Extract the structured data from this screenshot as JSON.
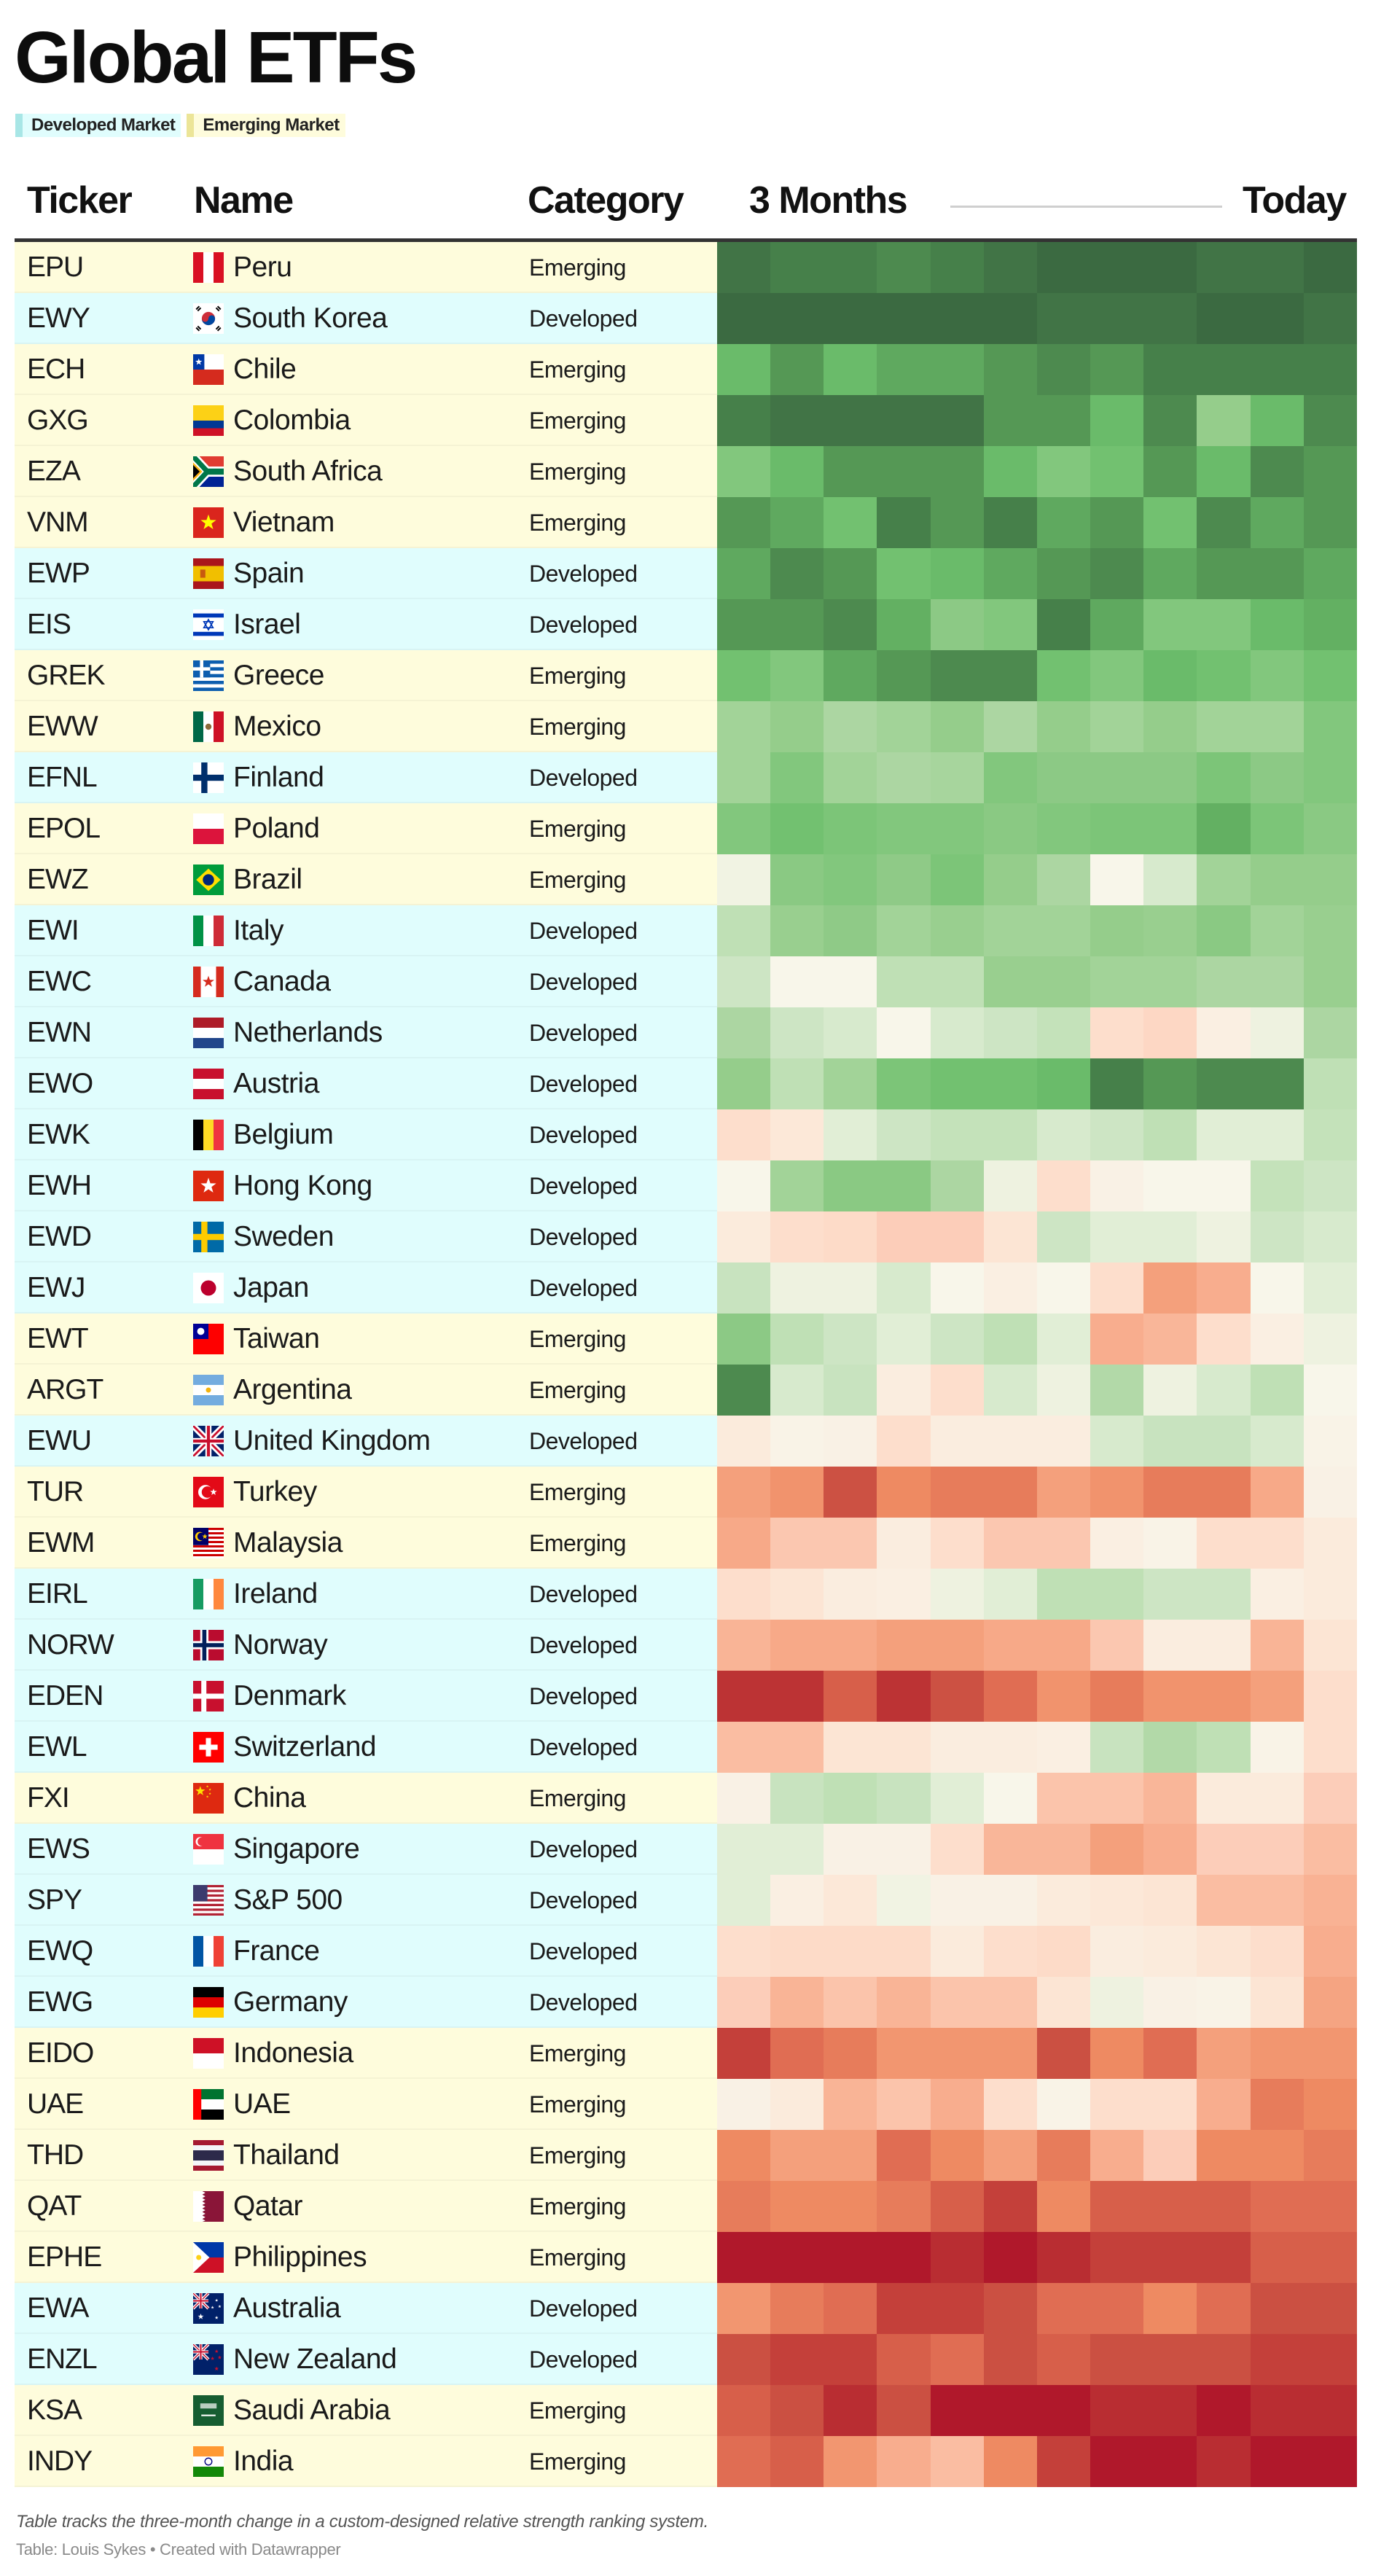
{
  "title": "Global ETFs",
  "legend": [
    {
      "label": "Developed Market",
      "color": "#a8e6e6"
    },
    {
      "label": "Emerging Market",
      "color": "#ece598"
    }
  ],
  "header": {
    "ticker": "Ticker",
    "name": "Name",
    "category": "Category",
    "start": "3 Months",
    "end": "Today"
  },
  "table": {
    "rows": [
      {
        "ticker": "EPU",
        "name": "Peru",
        "category": "Emerging",
        "flag": "peru-flag-icon"
      },
      {
        "ticker": "EWY",
        "name": "South Korea",
        "category": "Developed",
        "flag": "south-korea-flag-icon"
      },
      {
        "ticker": "ECH",
        "name": "Chile",
        "category": "Emerging",
        "flag": "chile-flag-icon"
      },
      {
        "ticker": "GXG",
        "name": "Colombia",
        "category": "Emerging",
        "flag": "colombia-flag-icon"
      },
      {
        "ticker": "EZA",
        "name": "South Africa",
        "category": "Emerging",
        "flag": "south-africa-flag-icon"
      },
      {
        "ticker": "VNM",
        "name": "Vietnam",
        "category": "Emerging",
        "flag": "vietnam-flag-icon"
      },
      {
        "ticker": "EWP",
        "name": "Spain",
        "category": "Developed",
        "flag": "spain-flag-icon"
      },
      {
        "ticker": "EIS",
        "name": "Israel",
        "category": "Developed",
        "flag": "israel-flag-icon"
      },
      {
        "ticker": "GREK",
        "name": "Greece",
        "category": "Emerging",
        "flag": "greece-flag-icon"
      },
      {
        "ticker": "EWW",
        "name": "Mexico",
        "category": "Emerging",
        "flag": "mexico-flag-icon"
      },
      {
        "ticker": "EFNL",
        "name": "Finland",
        "category": "Developed",
        "flag": "finland-flag-icon"
      },
      {
        "ticker": "EPOL",
        "name": "Poland",
        "category": "Emerging",
        "flag": "poland-flag-icon"
      },
      {
        "ticker": "EWZ",
        "name": "Brazil",
        "category": "Emerging",
        "flag": "brazil-flag-icon"
      },
      {
        "ticker": "EWI",
        "name": "Italy",
        "category": "Developed",
        "flag": "italy-flag-icon"
      },
      {
        "ticker": "EWC",
        "name": "Canada",
        "category": "Developed",
        "flag": "canada-flag-icon"
      },
      {
        "ticker": "EWN",
        "name": "Netherlands",
        "category": "Developed",
        "flag": "netherlands-flag-icon"
      },
      {
        "ticker": "EWO",
        "name": "Austria",
        "category": "Developed",
        "flag": "austria-flag-icon"
      },
      {
        "ticker": "EWK",
        "name": "Belgium",
        "category": "Developed",
        "flag": "belgium-flag-icon"
      },
      {
        "ticker": "EWH",
        "name": "Hong Kong",
        "category": "Developed",
        "flag": "hong-kong-flag-icon"
      },
      {
        "ticker": "EWD",
        "name": "Sweden",
        "category": "Developed",
        "flag": "sweden-flag-icon"
      },
      {
        "ticker": "EWJ",
        "name": "Japan",
        "category": "Developed",
        "flag": "japan-flag-icon"
      },
      {
        "ticker": "EWT",
        "name": "Taiwan",
        "category": "Emerging",
        "flag": "taiwan-flag-icon"
      },
      {
        "ticker": "ARGT",
        "name": "Argentina",
        "category": "Emerging",
        "flag": "argentina-flag-icon"
      },
      {
        "ticker": "EWU",
        "name": "United Kingdom",
        "category": "Developed",
        "flag": "uk-flag-icon"
      },
      {
        "ticker": "TUR",
        "name": "Turkey",
        "category": "Emerging",
        "flag": "turkey-flag-icon"
      },
      {
        "ticker": "EWM",
        "name": "Malaysia",
        "category": "Emerging",
        "flag": "malaysia-flag-icon"
      },
      {
        "ticker": "EIRL",
        "name": "Ireland",
        "category": "Developed",
        "flag": "ireland-flag-icon"
      },
      {
        "ticker": "NORW",
        "name": "Norway",
        "category": "Developed",
        "flag": "norway-flag-icon"
      },
      {
        "ticker": "EDEN",
        "name": "Denmark",
        "category": "Developed",
        "flag": "denmark-flag-icon"
      },
      {
        "ticker": "EWL",
        "name": "Switzerland",
        "category": "Developed",
        "flag": "switzerland-flag-icon"
      },
      {
        "ticker": "FXI",
        "name": "China",
        "category": "Emerging",
        "flag": "china-flag-icon"
      },
      {
        "ticker": "EWS",
        "name": "Singapore",
        "category": "Developed",
        "flag": "singapore-flag-icon"
      },
      {
        "ticker": "SPY",
        "name": "S&P 500",
        "category": "Developed",
        "flag": "usa-flag-icon"
      },
      {
        "ticker": "EWQ",
        "name": "France",
        "category": "Developed",
        "flag": "france-flag-icon"
      },
      {
        "ticker": "EWG",
        "name": "Germany",
        "category": "Developed",
        "flag": "germany-flag-icon"
      },
      {
        "ticker": "EIDO",
        "name": "Indonesia",
        "category": "Emerging",
        "flag": "indonesia-flag-icon"
      },
      {
        "ticker": "UAE",
        "name": "UAE",
        "category": "Emerging",
        "flag": "uae-flag-icon"
      },
      {
        "ticker": "THD",
        "name": "Thailand",
        "category": "Emerging",
        "flag": "thailand-flag-icon"
      },
      {
        "ticker": "QAT",
        "name": "Qatar",
        "category": "Emerging",
        "flag": "qatar-flag-icon"
      },
      {
        "ticker": "EPHE",
        "name": "Philippines",
        "category": "Emerging",
        "flag": "philippines-flag-icon"
      },
      {
        "ticker": "EWA",
        "name": "Australia",
        "category": "Developed",
        "flag": "australia-flag-icon"
      },
      {
        "ticker": "ENZL",
        "name": "New Zealand",
        "category": "Developed",
        "flag": "new-zealand-flag-icon"
      },
      {
        "ticker": "KSA",
        "name": "Saudi Arabia",
        "category": "Emerging",
        "flag": "saudi-arabia-flag-icon"
      },
      {
        "ticker": "INDY",
        "name": "India",
        "category": "Emerging",
        "flag": "india-flag-icon"
      }
    ]
  },
  "chart_data": {
    "type": "heatmap",
    "title": "Global ETFs",
    "xlabel_start": "3 Months",
    "xlabel_end": "Today",
    "columns": 12,
    "value_scale": "relative strength level, -10 (strongest red) to +10 (darkest green), estimated from colour",
    "color_low": "#b0182b",
    "color_mid": "#f8f6ea",
    "color_high": "#3b6a41",
    "values": [
      [
        9,
        8,
        8,
        7,
        8,
        9,
        10,
        10,
        10,
        9,
        9,
        10
      ],
      [
        10,
        10,
        10,
        10,
        10,
        10,
        9,
        9,
        9,
        10,
        10,
        9
      ],
      [
        4,
        6,
        4,
        5,
        5,
        6,
        7,
        6,
        8,
        8,
        8,
        8
      ],
      [
        8,
        9,
        9,
        9,
        9,
        6,
        6,
        4,
        7,
        2.3,
        4,
        7
      ],
      [
        3,
        4,
        6,
        6,
        6,
        4,
        3,
        3.5,
        6,
        4,
        7,
        6
      ],
      [
        6,
        5,
        3.5,
        8,
        6,
        8,
        5,
        6,
        3.5,
        7,
        5,
        6
      ],
      [
        5,
        7,
        6,
        3.5,
        4,
        5,
        6,
        7,
        5,
        6,
        6,
        5
      ],
      [
        6,
        6,
        7,
        4.5,
        2.6,
        3,
        8,
        5,
        3,
        3,
        4,
        4.5
      ],
      [
        3.5,
        3,
        5,
        6,
        7,
        7,
        3.5,
        3,
        4,
        3.5,
        3,
        3.5
      ],
      [
        2,
        2.3,
        1.6,
        2,
        2.3,
        1.6,
        2.3,
        2,
        2.3,
        2,
        2,
        3
      ],
      [
        2,
        3,
        2,
        1.6,
        1.8,
        3,
        2.6,
        2.6,
        2.6,
        3.2,
        2.6,
        3
      ],
      [
        3,
        3.5,
        3.2,
        3,
        3,
        2.7,
        3,
        3.2,
        3.2,
        4.5,
        3.2,
        2.7
      ],
      [
        0.3,
        2.7,
        3,
        2.5,
        3.2,
        2.3,
        1.6,
        0,
        0.8,
        2,
        2.3,
        2.3
      ],
      [
        1.3,
        2.2,
        2.5,
        2,
        2.2,
        2,
        2,
        2.3,
        2.2,
        2.7,
        2,
        2.2
      ],
      [
        1,
        0,
        0,
        1.3,
        1.3,
        2.2,
        2.2,
        2,
        2,
        1.6,
        1.6,
        2.2
      ],
      [
        1.6,
        1,
        0.8,
        0,
        0.8,
        1,
        1.2,
        -1,
        -1.2,
        -0.4,
        0.4,
        1.6
      ],
      [
        2.3,
        1.3,
        2,
        3.2,
        3.5,
        3.5,
        4,
        8,
        6,
        7,
        7,
        1.3
      ],
      [
        -1,
        -0.7,
        0.6,
        1,
        1.2,
        1.2,
        0.8,
        1,
        1.3,
        0.6,
        0.6,
        1.2
      ],
      [
        0,
        2,
        2.7,
        2.7,
        1.6,
        0.4,
        -1,
        -0.3,
        0,
        0,
        1.2,
        1
      ],
      [
        -0.6,
        -1,
        -1.1,
        -1.5,
        -1.5,
        -0.8,
        1,
        0.6,
        0.6,
        0.4,
        1,
        0.8
      ],
      [
        1.1,
        0.4,
        0.4,
        0.8,
        0,
        -0.4,
        0,
        -1,
        -3.2,
        -2.6,
        0,
        0.6
      ],
      [
        2.6,
        1.3,
        1,
        0.6,
        1,
        1.3,
        0.6,
        -2.6,
        -2.2,
        -1,
        -0.4,
        0.4
      ],
      [
        7,
        0.8,
        1.1,
        -0.5,
        -1,
        0.8,
        0.4,
        1.5,
        0.4,
        0.8,
        1.3,
        0
      ],
      [
        -0.6,
        -0.2,
        -0.3,
        -1,
        -0.5,
        -0.5,
        -0.5,
        0.8,
        1.1,
        1.1,
        0.8,
        -0.2
      ],
      [
        -3.2,
        -3.7,
        -6.5,
        -4,
        -4.6,
        -4.6,
        -3.2,
        -3.7,
        -4.6,
        -4.6,
        -2.8,
        -0.3
      ],
      [
        -2.8,
        -1.7,
        -1.7,
        -0.5,
        -1,
        -1.7,
        -1.7,
        -0.4,
        -0.2,
        -1,
        -1,
        -0.6
      ],
      [
        -1,
        -0.8,
        -0.5,
        -0.4,
        0.4,
        0.6,
        1.3,
        1.3,
        1,
        1,
        -0.4,
        -0.6
      ],
      [
        -2.3,
        -2.8,
        -2.8,
        -3.2,
        -3.2,
        -2.8,
        -2.8,
        -1.7,
        -0.5,
        -0.5,
        -2.3,
        -0.8
      ],
      [
        -8,
        -8,
        -5.5,
        -8,
        -6.5,
        -5,
        -3.7,
        -4.6,
        -3.7,
        -3.7,
        -3.2,
        -1
      ],
      [
        -2,
        -2,
        -0.8,
        -0.8,
        -0.5,
        -0.5,
        -0.4,
        1.1,
        1.5,
        1.3,
        -0.2,
        -1
      ],
      [
        -0.3,
        1.1,
        1.3,
        1.1,
        0.6,
        0,
        -1.8,
        -1.8,
        -2.2,
        -0.6,
        -0.6,
        -1.5
      ],
      [
        0.6,
        0.6,
        -0.3,
        -0.3,
        -1,
        -2.2,
        -2.2,
        -3.2,
        -2.6,
        -1.5,
        -1.5,
        -2
      ],
      [
        0.6,
        -0.4,
        -0.7,
        0.3,
        -0.3,
        -0.3,
        -0.6,
        -0.7,
        -0.8,
        -2,
        -2,
        -2.4
      ],
      [
        -1,
        -1.1,
        -1.1,
        -1.1,
        -0.6,
        -1,
        -1.1,
        -0.5,
        -0.6,
        -0.8,
        -1,
        -2.6
      ],
      [
        -1.5,
        -2.3,
        -1.8,
        -2.3,
        -1.8,
        -1.8,
        -0.8,
        0.4,
        -0.3,
        -0.2,
        -0.8,
        -3
      ],
      [
        -7.3,
        -5,
        -4.6,
        -3.6,
        -3.6,
        -3.6,
        -6.6,
        -4,
        -5,
        -3.2,
        -3.6,
        -3.6
      ],
      [
        -0.3,
        -0.6,
        -2.3,
        -1.8,
        -2.6,
        -1,
        -0.2,
        -1,
        -1,
        -2.6,
        -4.6,
        -4
      ],
      [
        -4,
        -3.2,
        -3.2,
        -5,
        -4,
        -3.2,
        -4.6,
        -2.6,
        -1.5,
        -4,
        -4,
        -4.6
      ],
      [
        -4.6,
        -4,
        -4,
        -4.6,
        -5.5,
        -7.3,
        -4,
        -5.5,
        -5.5,
        -5.5,
        -5,
        -5
      ],
      [
        -9.5,
        -9.5,
        -9.5,
        -9.5,
        -8.3,
        -9.5,
        -8.3,
        -7.3,
        -7.3,
        -7.3,
        -5.5,
        -5.5
      ],
      [
        -3.6,
        -4.6,
        -5,
        -7.3,
        -7.3,
        -6.6,
        -5,
        -5,
        -4,
        -5,
        -6.6,
        -6.6
      ],
      [
        -6.6,
        -7.3,
        -7.3,
        -5.5,
        -5,
        -6.6,
        -5.5,
        -6.6,
        -6.6,
        -6.6,
        -7.3,
        -7.3
      ],
      [
        -5.5,
        -6.6,
        -8.3,
        -6.6,
        -9.5,
        -9.5,
        -9.5,
        -8.3,
        -8.3,
        -9.5,
        -8.3,
        -8.3
      ],
      [
        -5,
        -5.5,
        -3.6,
        -2.6,
        -2,
        -4,
        -7.3,
        -9.5,
        -9.5,
        -8.3,
        -9.5,
        -9.5
      ]
    ]
  },
  "footer": {
    "note": "Table tracks the three-month change in a custom-designed relative strength ranking system.",
    "source": "Table: Louis Sykes • Created with Datawrapper"
  }
}
